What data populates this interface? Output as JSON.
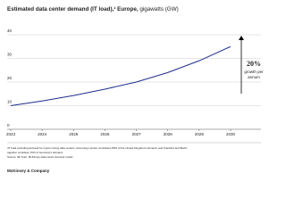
{
  "chart_data": {
    "type": "line",
    "title": "Estimated data center demand (IT load),¹ Europe,",
    "unit_label": "gigawatts (GW)",
    "x": [
      2023,
      2024,
      2025,
      2026,
      2027,
      2028,
      2029,
      2030
    ],
    "series": [
      {
        "name": "Data center demand",
        "color": "#1f2d8c",
        "values": [
          10,
          12,
          14.3,
          17,
          20,
          24,
          29,
          35
        ]
      }
    ],
    "xlim": [
      2023,
      2030
    ],
    "xticks": [
      2023,
      2024,
      2025,
      2026,
      2027,
      2028,
      2029,
      2030
    ],
    "ylim": [
      0,
      40
    ],
    "yticks": [
      0,
      10,
      20,
      30,
      40
    ],
    "grid": true,
    "annotation": {
      "value": "20%",
      "text": [
        "growth per",
        "annum"
      ]
    },
    "footnotes": [
      "¹IT load excluding demand for crypto mining data centers. Assuming London constitutes 80% of the United Kingdom's demand, and Frankfurt and Berlin",
      "together constitute 70% of Germany's demand.",
      "Source: IEI Tyler; McKinsey data center demand model"
    ],
    "brand": "McKinsey & Company"
  }
}
